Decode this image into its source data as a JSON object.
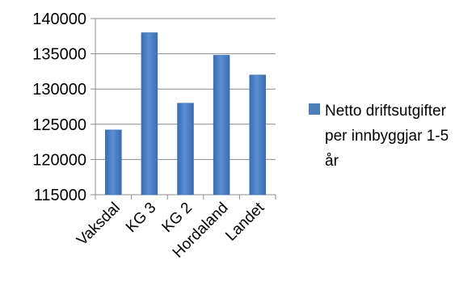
{
  "chart_data": {
    "type": "bar",
    "categories": [
      "Vaksdal",
      "KG 3",
      "KG 2",
      "Hordaland",
      "Landet"
    ],
    "series": [
      {
        "name": "Netto driftsutgifter per innbyggjar 1-5 år",
        "values": [
          124200,
          138000,
          128000,
          134800,
          132000
        ],
        "color": "#4a7ebb"
      }
    ],
    "ylim": [
      115000,
      140000
    ],
    "yticks": [
      115000,
      120000,
      125000,
      130000,
      135000,
      140000
    ],
    "grid": true,
    "legend_position": "right",
    "title": "",
    "xlabel": "",
    "ylabel": ""
  }
}
